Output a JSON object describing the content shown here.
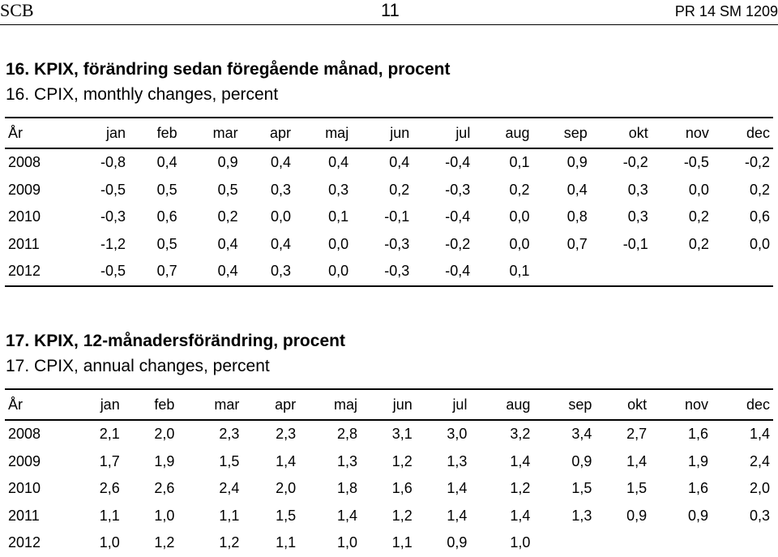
{
  "header": {
    "left": "SCB",
    "center": "11",
    "right": "PR 14 SM 1209"
  },
  "section1": {
    "title_sv": "16. KPIX, förändring sedan föregående månad, procent",
    "title_en": "16. CPIX, monthly changes, percent",
    "columns": [
      "År",
      "jan",
      "feb",
      "mar",
      "apr",
      "maj",
      "jun",
      "jul",
      "aug",
      "sep",
      "okt",
      "nov",
      "dec"
    ],
    "rows": [
      [
        "2008",
        "-0,8",
        "0,4",
        "0,9",
        "0,4",
        "0,4",
        "0,4",
        "-0,4",
        "0,1",
        "0,9",
        "-0,2",
        "-0,5",
        "-0,2"
      ],
      [
        "2009",
        "-0,5",
        "0,5",
        "0,5",
        "0,3",
        "0,3",
        "0,2",
        "-0,3",
        "0,2",
        "0,4",
        "0,3",
        "0,0",
        "0,2"
      ],
      [
        "2010",
        "-0,3",
        "0,6",
        "0,2",
        "0,0",
        "0,1",
        "-0,1",
        "-0,4",
        "0,0",
        "0,8",
        "0,3",
        "0,2",
        "0,6"
      ],
      [
        "2011",
        "-1,2",
        "0,5",
        "0,4",
        "0,4",
        "0,0",
        "-0,3",
        "-0,2",
        "0,0",
        "0,7",
        "-0,1",
        "0,2",
        "0,0"
      ],
      [
        "2012",
        "-0,5",
        "0,7",
        "0,4",
        "0,3",
        "0,0",
        "-0,3",
        "-0,4",
        "0,1",
        "",
        "",
        "",
        ""
      ]
    ]
  },
  "section2": {
    "title_sv": "17. KPIX, 12-månadersförändring, procent",
    "title_en": "17. CPIX, annual changes, percent",
    "columns": [
      "År",
      "jan",
      "feb",
      "mar",
      "apr",
      "maj",
      "jun",
      "jul",
      "aug",
      "sep",
      "okt",
      "nov",
      "dec"
    ],
    "rows": [
      [
        "2008",
        "2,1",
        "2,0",
        "2,3",
        "2,3",
        "2,8",
        "3,1",
        "3,0",
        "3,2",
        "3,4",
        "2,7",
        "1,6",
        "1,4"
      ],
      [
        "2009",
        "1,7",
        "1,9",
        "1,5",
        "1,4",
        "1,3",
        "1,2",
        "1,3",
        "1,4",
        "0,9",
        "1,4",
        "1,9",
        "2,4"
      ],
      [
        "2010",
        "2,6",
        "2,6",
        "2,4",
        "2,0",
        "1,8",
        "1,6",
        "1,4",
        "1,2",
        "1,5",
        "1,5",
        "1,6",
        "2,0"
      ],
      [
        "2011",
        "1,1",
        "1,0",
        "1,1",
        "1,5",
        "1,4",
        "1,2",
        "1,4",
        "1,4",
        "1,3",
        "0,9",
        "0,9",
        "0,3"
      ],
      [
        "2012",
        "1,0",
        "1,2",
        "1,2",
        "1,1",
        "1,0",
        "1,1",
        "0,9",
        "1,0",
        "",
        "",
        "",
        ""
      ]
    ]
  }
}
